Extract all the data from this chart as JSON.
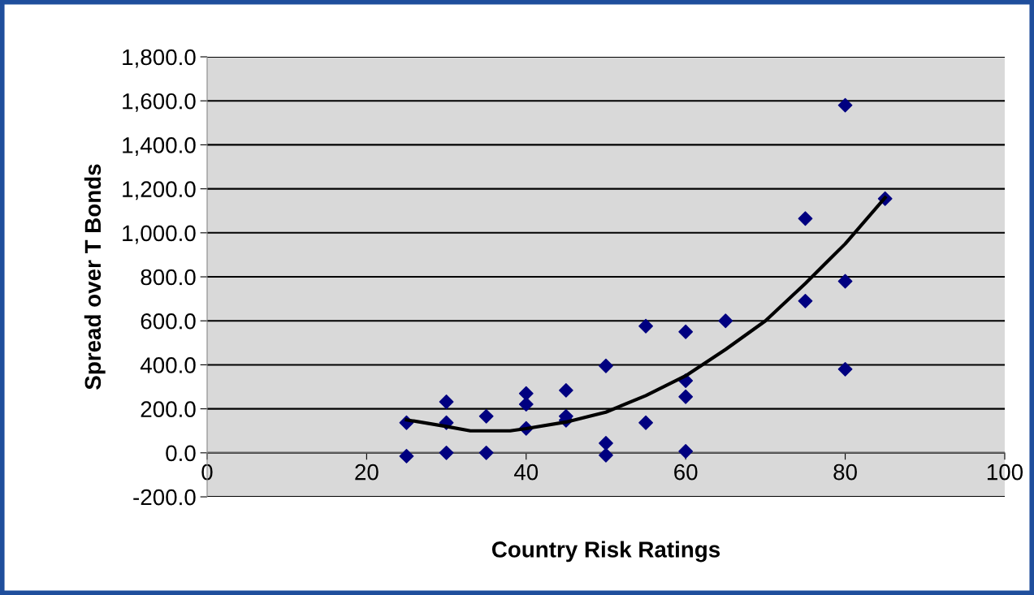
{
  "chart_data": {
    "type": "scatter",
    "xlabel": "Country Risk Ratings",
    "ylabel": "Spread over T Bonds",
    "xlim": [
      0,
      100
    ],
    "xticks": [
      0,
      20,
      40,
      60,
      80,
      100
    ],
    "ylim": [
      -200,
      1800
    ],
    "yticks": [
      {
        "value": -200,
        "label": "-200.0"
      },
      {
        "value": 0,
        "label": "0.0"
      },
      {
        "value": 200,
        "label": "200.0"
      },
      {
        "value": 400,
        "label": "400.0"
      },
      {
        "value": 600,
        "label": "600.0"
      },
      {
        "value": 800,
        "label": "800.0"
      },
      {
        "value": 1000,
        "label": "1,000.0"
      },
      {
        "value": 1200,
        "label": "1,200.0"
      },
      {
        "value": 1400,
        "label": "1,400.0"
      },
      {
        "value": 1600,
        "label": "1,600.0"
      },
      {
        "value": 1800,
        "label": "1,800.0"
      }
    ],
    "grid": "y",
    "legend": false,
    "series": [
      {
        "color": "#000080",
        "marker": "diamond",
        "x": [
          25,
          25,
          30,
          30,
          30,
          35,
          35,
          40,
          40,
          40,
          45,
          45,
          45,
          50,
          50,
          50,
          55,
          55,
          60,
          60,
          60,
          60,
          65,
          75,
          75,
          80,
          80,
          80,
          85
        ],
        "values": [
          137,
          -15,
          232,
          137,
          0,
          166,
          0,
          270,
          221,
          111,
          284,
          166,
          148,
          395,
          44,
          -11,
          576,
          137,
          550,
          328,
          255,
          7,
          600,
          1065,
          690,
          1580,
          780,
          380,
          1155
        ]
      },
      {
        "type": "line",
        "color": "#000000",
        "marker": "none",
        "line_style": "solid",
        "x": [
          25,
          30,
          33,
          38,
          40,
          45,
          50,
          55,
          60,
          65,
          70,
          75,
          80,
          85
        ],
        "values": [
          150,
          120,
          100,
          100,
          110,
          140,
          185,
          260,
          350,
          470,
          600,
          770,
          950,
          1160
        ]
      }
    ]
  }
}
